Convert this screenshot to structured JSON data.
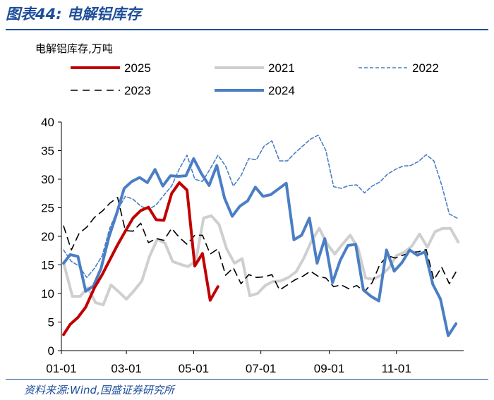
{
  "figure": {
    "title": "图表44:  电解铝库存",
    "source": "资料来源:Wind,国盛证券研究所"
  },
  "chart_data": {
    "type": "line",
    "unit_label": "电解铝库存,万吨",
    "ylim": [
      0,
      40
    ],
    "y_ticks": [
      "0",
      "5",
      "10",
      "15",
      "20",
      "25",
      "30",
      "35",
      "40"
    ],
    "x_ticks": [
      "01-01",
      "03-01",
      "05-01",
      "07-01",
      "09-01",
      "11-01"
    ],
    "x_tick_days": [
      0,
      59,
      120,
      181,
      243,
      304
    ],
    "xlim_days": [
      0,
      365
    ],
    "legend_order": [
      "2025",
      "2021",
      "2022",
      "2023",
      "2024"
    ],
    "series": [
      {
        "name": "2025",
        "color": "#c00000",
        "dash": "solid",
        "width": 4,
        "x_days": [
          2,
          8,
          15,
          22,
          30,
          37,
          44,
          51,
          58,
          65,
          72,
          79,
          86,
          93,
          100,
          107,
          114,
          121,
          128,
          135,
          142
        ],
        "values": [
          2.8,
          4.6,
          5.8,
          7.6,
          11.0,
          13.3,
          15.9,
          18.5,
          20.9,
          23.2,
          24.5,
          25.1,
          22.9,
          22.8,
          27.5,
          29.4,
          28.1,
          14.8,
          17.0,
          8.8,
          11.2
        ]
      },
      {
        "name": "2021",
        "color": "#cfcfcf",
        "dash": "solid",
        "width": 4,
        "x_days": [
          2,
          10,
          17,
          24,
          31,
          38,
          45,
          52,
          59,
          66,
          73,
          80,
          87,
          94,
          101,
          108,
          115,
          122,
          129,
          136,
          143,
          150,
          157,
          164,
          171,
          178,
          185,
          192,
          199,
          206,
          213,
          220,
          227,
          234,
          241,
          248,
          255,
          262,
          269,
          276,
          283,
          290,
          297,
          304,
          311,
          318,
          325,
          332,
          339,
          346,
          353,
          360
        ],
        "values": [
          15.4,
          9.5,
          9.5,
          11.0,
          8.4,
          8.0,
          11.5,
          10.3,
          9.0,
          10.5,
          12.2,
          16.5,
          19.5,
          18.8,
          15.6,
          15.1,
          14.7,
          15.7,
          23.2,
          23.6,
          22.1,
          17.8,
          15.3,
          16.1,
          9.6,
          10.0,
          11.4,
          12.1,
          12.2,
          12.8,
          13.8,
          16.2,
          19.2,
          21.4,
          18.7,
          16.9,
          18.6,
          20.2,
          18.0,
          12.7,
          12.5,
          13.2,
          14.4,
          16.6,
          17.2,
          18.3,
          20.4,
          18.1,
          20.8,
          21.4,
          21.4,
          19.0
        ]
      },
      {
        "name": "2022",
        "color": "#4a7ec5",
        "dash": "dashed",
        "width": 1.6,
        "x_days": [
          2,
          9,
          16,
          23,
          30,
          37,
          44,
          51,
          58,
          65,
          72,
          79,
          86,
          93,
          100,
          107,
          114,
          121,
          128,
          135,
          142,
          149,
          156,
          163,
          170,
          177,
          184,
          191,
          198,
          205,
          212,
          219,
          226,
          233,
          240,
          247,
          254,
          261,
          268,
          275,
          282,
          289,
          296,
          303,
          310,
          317,
          324,
          331,
          338,
          345,
          352,
          359
        ],
        "values": [
          17.6,
          15.6,
          14.8,
          12.8,
          14.4,
          16.6,
          21.5,
          24.6,
          27.0,
          26.5,
          25.3,
          24.7,
          25.5,
          27.2,
          28.8,
          31.8,
          34.2,
          30.0,
          29.6,
          31.8,
          34.2,
          32.3,
          28.8,
          30.6,
          33.6,
          33.4,
          35.8,
          36.7,
          33.2,
          33.2,
          34.6,
          35.8,
          37.0,
          37.7,
          35.0,
          28.7,
          28.4,
          28.9,
          29.0,
          27.6,
          28.8,
          29.5,
          30.9,
          31.7,
          32.3,
          32.4,
          33.1,
          34.3,
          33.2,
          29.0,
          23.9,
          23.2
        ]
      },
      {
        "name": "2023",
        "color": "#000000",
        "dash": "dashed",
        "width": 1.6,
        "x_days": [
          2,
          9,
          16,
          23,
          30,
          37,
          44,
          51,
          58,
          65,
          72,
          79,
          86,
          93,
          100,
          107,
          114,
          121,
          128,
          135,
          142,
          149,
          156,
          163,
          170,
          177,
          184,
          191,
          198,
          205,
          212,
          219,
          226,
          233,
          240,
          247,
          254,
          261,
          268,
          275,
          282,
          289,
          296,
          303,
          310,
          317,
          324,
          331,
          338,
          345,
          352,
          359
        ],
        "values": [
          21.8,
          17.6,
          20.5,
          21.6,
          23.3,
          24.4,
          25.8,
          26.8,
          21.0,
          20.9,
          22.3,
          18.9,
          19.6,
          19.3,
          21.4,
          19.8,
          18.6,
          20.2,
          20.2,
          16.9,
          17.8,
          13.2,
          14.5,
          11.7,
          13.3,
          12.8,
          12.9,
          13.3,
          10.6,
          11.5,
          12.4,
          13.0,
          13.9,
          13.0,
          12.7,
          11.2,
          11.5,
          10.8,
          11.4,
          10.3,
          11.9,
          15.1,
          16.6,
          16.2,
          16.7,
          17.2,
          17.3,
          17.7,
          12.4,
          14.6,
          11.7,
          14.1
        ]
      },
      {
        "name": "2024",
        "color": "#4a7ec5",
        "dash": "solid",
        "width": 4,
        "x_days": [
          2,
          8,
          15,
          22,
          29,
          36,
          43,
          50,
          57,
          64,
          71,
          78,
          85,
          92,
          99,
          106,
          113,
          120,
          127,
          134,
          141,
          148,
          155,
          162,
          169,
          176,
          183,
          190,
          197,
          204,
          211,
          218,
          225,
          232,
          239,
          246,
          253,
          260,
          267,
          274,
          281,
          288,
          295,
          302,
          309,
          316,
          323,
          330,
          337,
          344,
          351,
          358
        ],
        "values": [
          15.3,
          16.8,
          16.5,
          10.4,
          11.3,
          14.4,
          19.8,
          23.9,
          28.4,
          29.6,
          30.3,
          29.4,
          31.7,
          28.8,
          30.6,
          30.5,
          30.6,
          33.6,
          31.0,
          28.9,
          32.4,
          26.7,
          23.5,
          25.3,
          26.2,
          28.6,
          27.0,
          27.3,
          28.3,
          29.3,
          19.4,
          20.2,
          23.2,
          15.3,
          19.6,
          11.9,
          15.8,
          18.4,
          18.6,
          10.6,
          9.5,
          8.7,
          17.6,
          13.9,
          15.4,
          17.6,
          16.7,
          17.3,
          11.6,
          9.0,
          2.6,
          4.7
        ]
      }
    ]
  }
}
